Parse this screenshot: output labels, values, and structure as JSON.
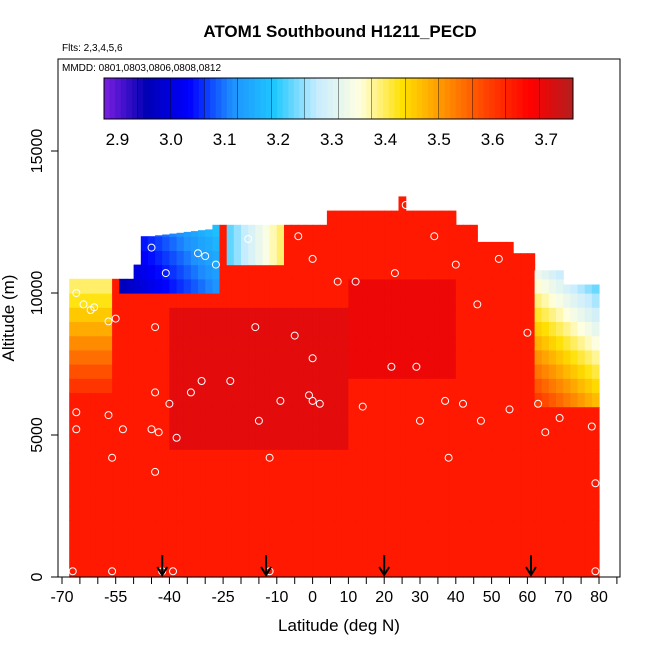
{
  "chart_data": {
    "type": "heatmap",
    "title": "ATOM1 Southbound H1211_PECD",
    "flights_label": "Flts: 2,3,4,5,6",
    "mmdd_label": "MMDD: 0801,0803,0806,0808,0812",
    "xlabel": "Latitude (deg N)",
    "ylabel": "Altitude (m)",
    "xlim": [
      -70,
      85
    ],
    "ylim": [
      0,
      17500
    ],
    "x_ticks": [
      "-70",
      "-55",
      "-40",
      "-25",
      "-10",
      "0",
      "10",
      "20",
      "30",
      "40",
      "50",
      "60",
      "70",
      "80"
    ],
    "x_tick_values": [
      -70,
      -55,
      -40,
      -25,
      -10,
      0,
      10,
      20,
      30,
      40,
      50,
      60,
      70,
      80
    ],
    "y_ticks": [
      "0",
      "5000",
      "10000",
      "15000"
    ],
    "y_tick_values": [
      0,
      5000,
      10000,
      15000
    ],
    "colorbar": {
      "min": 2.875,
      "max": 3.75,
      "ticks": [
        "2.9",
        "3.0",
        "3.1",
        "3.2",
        "3.3",
        "3.4",
        "3.5",
        "3.6",
        "3.7"
      ],
      "tick_values": [
        2.9,
        3.0,
        3.1,
        3.2,
        3.3,
        3.4,
        3.5,
        3.6,
        3.7
      ],
      "colors": [
        "#7b1fe0",
        "#0000b4",
        "#0000ff",
        "#1e90ff",
        "#1ec8ff",
        "#c8ecff",
        "#ffffe0",
        "#ffe000",
        "#ff9000",
        "#ff4000",
        "#ff0000",
        "#b41e1e"
      ]
    },
    "arrows_latitude": [
      -42,
      -13,
      20,
      61
    ],
    "sample_points": [
      [
        -67,
        200
      ],
      [
        -56,
        200
      ],
      [
        -42,
        200
      ],
      [
        -39,
        200
      ],
      [
        -12,
        200
      ],
      [
        79,
        200
      ],
      [
        -66,
        5800
      ],
      [
        -66,
        5200
      ],
      [
        -57,
        5700
      ],
      [
        -56,
        4200
      ],
      [
        -53,
        5200
      ],
      [
        -45,
        5200
      ],
      [
        -43,
        5100
      ],
      [
        -44,
        3700
      ],
      [
        -40,
        6100
      ],
      [
        -38,
        4900
      ],
      [
        -44,
        6500
      ],
      [
        -34,
        6500
      ],
      [
        -31,
        6900
      ],
      [
        -23,
        6900
      ],
      [
        -15,
        5500
      ],
      [
        -12,
        4200
      ],
      [
        -9,
        6200
      ],
      [
        -1,
        6400
      ],
      [
        0,
        6200
      ],
      [
        2,
        6100
      ],
      [
        14,
        6000
      ],
      [
        30,
        5500
      ],
      [
        38,
        4200
      ],
      [
        42,
        6100
      ],
      [
        47,
        5500
      ],
      [
        55,
        5900
      ],
      [
        63,
        6100
      ],
      [
        65,
        5100
      ],
      [
        69,
        5600
      ],
      [
        78,
        5300
      ],
      [
        79,
        3300
      ],
      [
        -44,
        8800
      ],
      [
        -16,
        8800
      ],
      [
        -5,
        8500
      ],
      [
        0,
        7700
      ],
      [
        22,
        7400
      ],
      [
        29,
        7400
      ],
      [
        37,
        6200
      ],
      [
        -66,
        10000
      ],
      [
        -64,
        9600
      ],
      [
        -62,
        9400
      ],
      [
        -61,
        9500
      ],
      [
        -57,
        9000
      ],
      [
        -55,
        9100
      ],
      [
        -41,
        10700
      ],
      [
        -27,
        11000
      ],
      [
        -32,
        11400
      ],
      [
        -30,
        11300
      ],
      [
        -18,
        11900
      ],
      [
        -4,
        12000
      ],
      [
        0,
        11200
      ],
      [
        7,
        10400
      ],
      [
        12,
        10400
      ],
      [
        23,
        10700
      ],
      [
        34,
        12000
      ],
      [
        40,
        11000
      ],
      [
        46,
        9600
      ],
      [
        52,
        11200
      ],
      [
        60,
        8600
      ],
      [
        68,
        11300
      ],
      [
        -45,
        11600
      ],
      [
        26,
        13100
      ]
    ]
  }
}
